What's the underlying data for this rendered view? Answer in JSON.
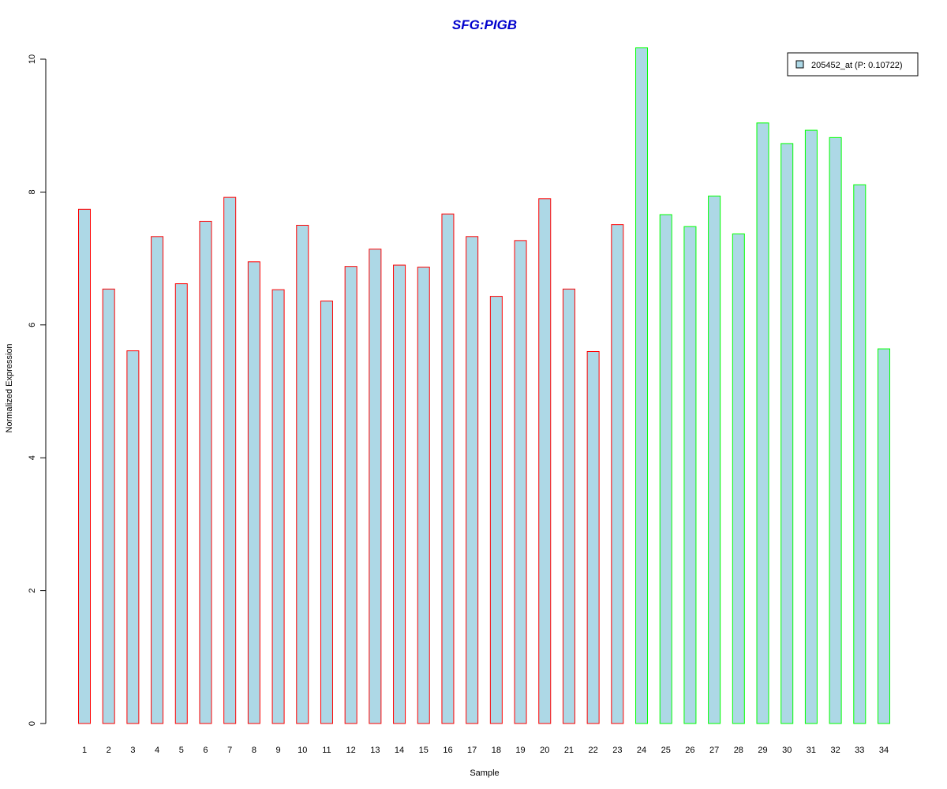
{
  "chart_data": {
    "type": "bar",
    "title": "SFG:PIGB",
    "xlabel": "Sample",
    "ylabel": "Normalized Expression",
    "ylim": [
      0,
      10.2
    ],
    "yticks": [
      "0",
      "2",
      "4",
      "6",
      "8",
      "10"
    ],
    "categories": [
      "1",
      "2",
      "3",
      "4",
      "5",
      "6",
      "7",
      "8",
      "9",
      "10",
      "11",
      "12",
      "13",
      "14",
      "15",
      "16",
      "17",
      "18",
      "19",
      "20",
      "21",
      "22",
      "23",
      "24",
      "25",
      "26",
      "27",
      "28",
      "29",
      "30",
      "31",
      "32",
      "33",
      "34"
    ],
    "values": [
      7.74,
      6.54,
      5.61,
      7.33,
      6.62,
      7.56,
      7.92,
      6.95,
      6.53,
      7.5,
      6.36,
      6.88,
      7.14,
      6.9,
      6.87,
      7.67,
      7.33,
      6.43,
      7.27,
      7.9,
      6.54,
      5.6,
      7.51,
      10.17,
      7.66,
      7.48,
      7.94,
      7.37,
      9.04,
      8.73,
      8.93,
      8.82,
      8.11,
      5.64
    ],
    "bar_fill": "#add8e6",
    "group_borders": [
      "#ff0000",
      "#ff0000",
      "#ff0000",
      "#ff0000",
      "#ff0000",
      "#ff0000",
      "#ff0000",
      "#ff0000",
      "#ff0000",
      "#ff0000",
      "#ff0000",
      "#ff0000",
      "#ff0000",
      "#ff0000",
      "#ff0000",
      "#ff0000",
      "#ff0000",
      "#ff0000",
      "#ff0000",
      "#ff0000",
      "#ff0000",
      "#ff0000",
      "#ff0000",
      "#00ff00",
      "#00ff00",
      "#00ff00",
      "#00ff00",
      "#00ff00",
      "#00ff00",
      "#00ff00",
      "#00ff00",
      "#00ff00",
      "#00ff00",
      "#00ff00"
    ],
    "title_color": "#0000cd",
    "legend": {
      "placement": "top-right",
      "entries": [
        {
          "label": "205452_at (P: 0.10722)",
          "color": "#add8e6"
        }
      ]
    },
    "grid": false
  }
}
